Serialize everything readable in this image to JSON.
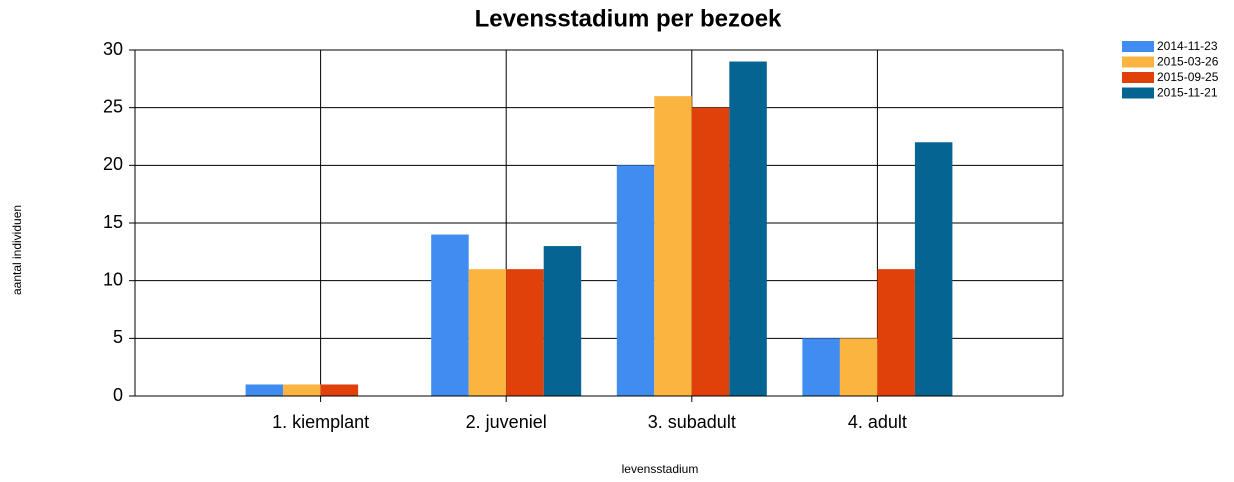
{
  "chart_data": {
    "type": "bar",
    "title": "Levensstadium per bezoek",
    "x_label": "levensstadium",
    "y_label": "aantal individuen",
    "categories": [
      "1. kiemplant",
      "2. juveniel",
      "3. subadult",
      "4. adult"
    ],
    "series": [
      {
        "name": "2014-11-23",
        "color": "#418cf0",
        "values": [
          1,
          14,
          20,
          5
        ]
      },
      {
        "name": "2015-03-26",
        "color": "#fcb441",
        "values": [
          1,
          11,
          26,
          5
        ]
      },
      {
        "name": "2015-09-25",
        "color": "#e0400a",
        "values": [
          1,
          11,
          25,
          11
        ]
      },
      {
        "name": "2015-11-21",
        "color": "#056492",
        "values": [
          0,
          13,
          29,
          22
        ]
      }
    ],
    "ylim": [
      0,
      30
    ],
    "yticks": [
      0,
      5,
      10,
      15,
      20,
      25,
      30
    ],
    "grid": true,
    "legend": "top-right"
  }
}
